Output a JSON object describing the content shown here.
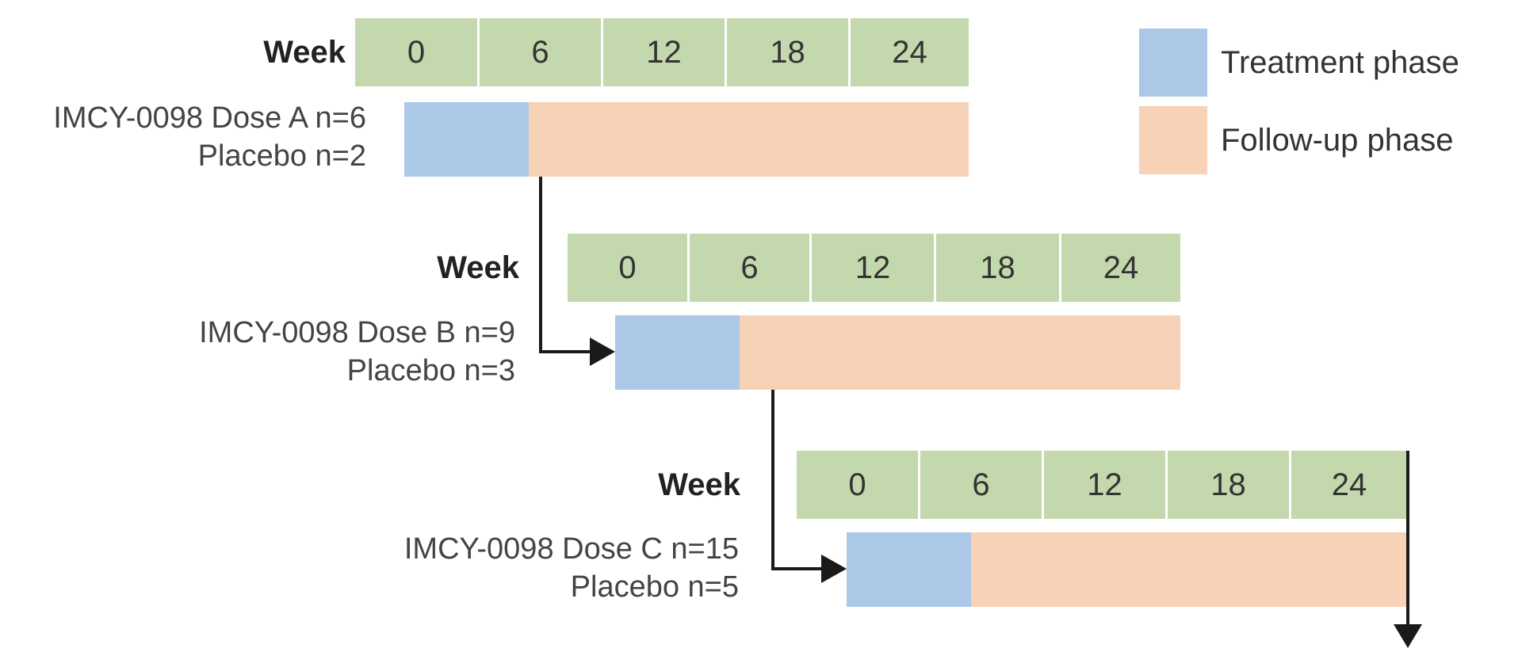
{
  "legend": {
    "treatment_label": "Treatment phase",
    "followup_label": "Follow-up phase",
    "treatment_color": "#abc8e6",
    "followup_color": "#f7d2b6"
  },
  "week_header_color": "#c3d8ad",
  "cohorts": [
    {
      "week_label": "Week",
      "weeks": [
        "0",
        "6",
        "12",
        "18",
        "24"
      ],
      "arm_line1": "IMCY-0098 Dose A n=6",
      "arm_line2": "Placebo n=2"
    },
    {
      "week_label": "Week",
      "weeks": [
        "0",
        "6",
        "12",
        "18",
        "24"
      ],
      "arm_line1": "IMCY-0098 Dose B n=9",
      "arm_line2": "Placebo n=3"
    },
    {
      "week_label": "Week",
      "weeks": [
        "0",
        "6",
        "12",
        "18",
        "24"
      ],
      "arm_line1": "IMCY-0098 Dose C n=15",
      "arm_line2": "Placebo n=5"
    }
  ]
}
